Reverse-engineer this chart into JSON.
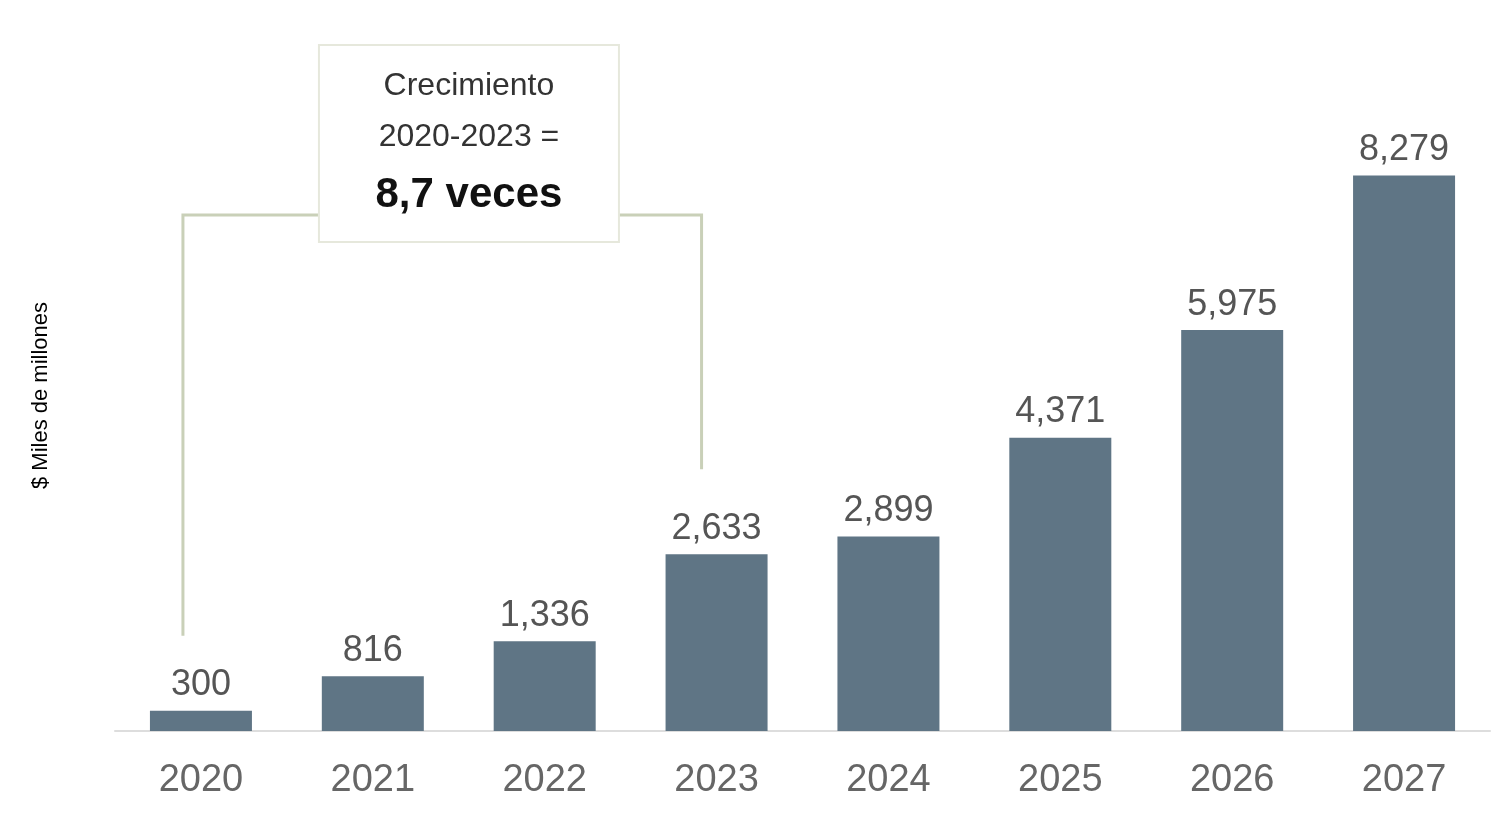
{
  "chart_data": {
    "type": "bar",
    "ylabel": "$ Miles de millones",
    "categories": [
      "2020",
      "2021",
      "2022",
      "2023",
      "2024",
      "2025",
      "2026",
      "2027"
    ],
    "values": [
      300,
      816,
      1336,
      2633,
      2899,
      4371,
      5975,
      8279
    ],
    "value_labels": [
      "300",
      "816",
      "1,336",
      "2,633",
      "2,899",
      "4,371",
      "5,975",
      "8,279"
    ],
    "color": "#5f7585",
    "annotations": [
      "Crecimiento 2020-2023 = 8,7 veces"
    ],
    "grid": false
  }
}
